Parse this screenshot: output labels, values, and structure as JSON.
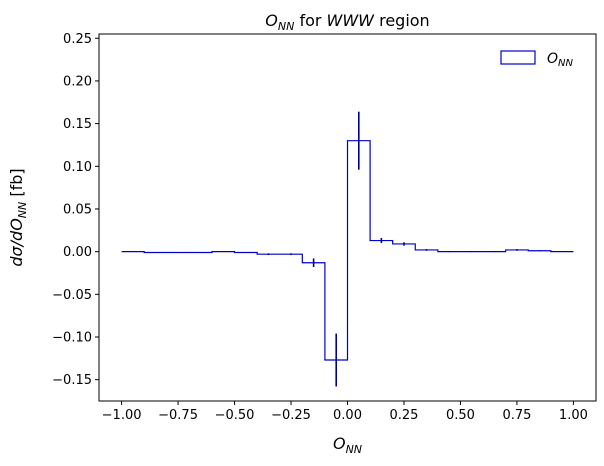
{
  "chart_data": {
    "type": "step-histogram",
    "title": "O_NN for WWW region",
    "title_parts": {
      "main": "O",
      "sub": "NN",
      "mid": " for ",
      "italic": "WWW",
      "end": " region"
    },
    "xlabel": "O_NN",
    "xlabel_parts": {
      "main": "O",
      "sub": "NN"
    },
    "ylabel": "dσ/dO_NN [fb]",
    "ylabel_parts": {
      "pre": "dσ/dO",
      "sub": "NN",
      "post": " [fb]"
    },
    "xlim": [
      -1.1,
      1.1
    ],
    "ylim": [
      -0.175,
      0.255
    ],
    "xticks": [
      -1.0,
      -0.75,
      -0.5,
      -0.25,
      0.0,
      0.25,
      0.5,
      0.75,
      1.0
    ],
    "xtick_labels": [
      "−1.00",
      "−0.75",
      "−0.50",
      "−0.25",
      "0.00",
      "0.25",
      "0.50",
      "0.75",
      "1.00"
    ],
    "yticks": [
      -0.15,
      -0.1,
      -0.05,
      0.0,
      0.05,
      0.1,
      0.15,
      0.2,
      0.25
    ],
    "ytick_labels": [
      "−0.15",
      "−0.10",
      "−0.05",
      "0.00",
      "0.05",
      "0.10",
      "0.15",
      "0.20",
      "0.25"
    ],
    "grid": false,
    "legend": {
      "placement": "top-right",
      "label_main": "O",
      "label_sub": "NN"
    },
    "color": "#0000cc",
    "errorbar_color": "#00008b",
    "bin_edges": [
      -1.0,
      -0.9,
      -0.8,
      -0.7,
      -0.6,
      -0.5,
      -0.4,
      -0.3,
      -0.2,
      -0.1,
      0.0,
      0.1,
      0.2,
      0.3,
      0.4,
      0.5,
      0.6,
      0.7,
      0.8,
      0.9,
      1.0
    ],
    "series": [
      {
        "values": [
          0.0,
          -0.001,
          -0.001,
          -0.001,
          0.0,
          -0.001,
          -0.003,
          -0.003,
          -0.013,
          -0.127,
          0.13,
          0.013,
          0.009,
          0.002,
          0.0,
          0.0,
          0.0,
          0.002,
          0.001,
          0.0
        ],
        "errors": [
          0.0,
          0.0005,
          0.0005,
          0.0005,
          0.0,
          0.0005,
          0.001,
          0.001,
          0.005,
          0.031,
          0.034,
          0.003,
          0.002,
          0.001,
          0.0005,
          0.0005,
          0.0005,
          0.001,
          0.0005,
          0.0
        ]
      }
    ]
  }
}
